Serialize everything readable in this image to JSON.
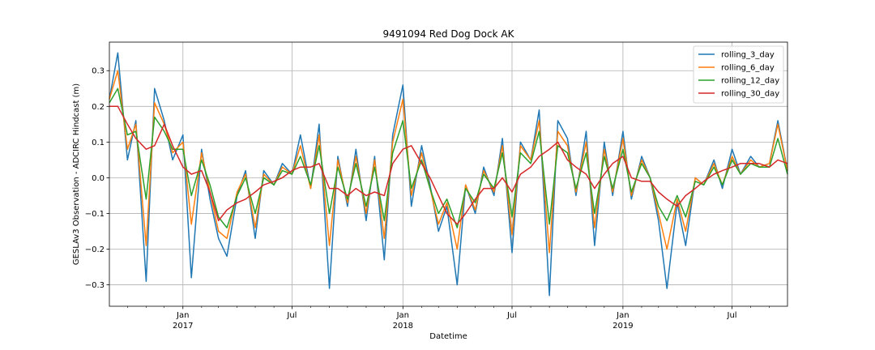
{
  "chart_data": {
    "type": "line",
    "title": "9491094 Red Dog Dock AK",
    "xlabel": "Datetime",
    "ylabel": "GESLAv3 Observation - ADCIRC Hindcast (m)",
    "x_range": [
      "2016-09-01",
      "2019-10-01"
    ],
    "ylim": [
      -0.36,
      0.38
    ],
    "grid": true,
    "legend_position": "upper right",
    "y_ticks": [
      -0.3,
      -0.2,
      -0.1,
      0.0,
      0.1,
      0.2,
      0.3
    ],
    "y_tick_labels": [
      "−0.3",
      "−0.2",
      "−0.1",
      "0.0",
      "0.1",
      "0.2",
      "0.3"
    ],
    "x_major_ticks": [
      {
        "date": "2017-01-01",
        "month": "Jan",
        "year": "2017"
      },
      {
        "date": "2017-07-01",
        "month": "Jul",
        "year": ""
      },
      {
        "date": "2018-01-01",
        "month": "Jan",
        "year": "2018"
      },
      {
        "date": "2018-07-01",
        "month": "Jul",
        "year": ""
      },
      {
        "date": "2019-01-01",
        "month": "Jan",
        "year": "2019"
      },
      {
        "date": "2019-07-01",
        "month": "Jul",
        "year": ""
      }
    ],
    "x_minor_ticks": [
      "2016-10-01",
      "2016-11-01",
      "2016-12-01",
      "2017-02-01",
      "2017-03-01",
      "2017-04-01",
      "2017-05-01",
      "2017-06-01",
      "2017-08-01",
      "2017-09-01",
      "2017-10-01",
      "2017-11-01",
      "2017-12-01",
      "2018-02-01",
      "2018-03-01",
      "2018-04-01",
      "2018-05-01",
      "2018-06-01",
      "2018-08-01",
      "2018-09-01",
      "2018-10-01",
      "2018-11-01",
      "2018-12-01",
      "2019-02-01",
      "2019-03-01",
      "2019-04-01",
      "2019-05-01",
      "2019-06-01",
      "2019-08-01",
      "2019-09-01"
    ],
    "x": [
      "2016-09-01",
      "2016-09-15",
      "2016-10-01",
      "2016-10-15",
      "2016-11-01",
      "2016-11-15",
      "2016-12-01",
      "2016-12-15",
      "2017-01-01",
      "2017-01-15",
      "2017-02-01",
      "2017-02-15",
      "2017-03-01",
      "2017-03-15",
      "2017-04-01",
      "2017-04-15",
      "2017-05-01",
      "2017-05-15",
      "2017-06-01",
      "2017-06-15",
      "2017-07-01",
      "2017-07-15",
      "2017-08-01",
      "2017-08-15",
      "2017-09-01",
      "2017-09-15",
      "2017-10-01",
      "2017-10-15",
      "2017-11-01",
      "2017-11-15",
      "2017-12-01",
      "2017-12-15",
      "2018-01-01",
      "2018-01-15",
      "2018-02-01",
      "2018-02-15",
      "2018-03-01",
      "2018-03-15",
      "2018-04-01",
      "2018-04-15",
      "2018-05-01",
      "2018-05-15",
      "2018-06-01",
      "2018-06-15",
      "2018-07-01",
      "2018-07-15",
      "2018-08-01",
      "2018-08-15",
      "2018-09-01",
      "2018-09-15",
      "2018-10-01",
      "2018-10-15",
      "2018-11-01",
      "2018-11-15",
      "2018-12-01",
      "2018-12-15",
      "2019-01-01",
      "2019-01-15",
      "2019-02-01",
      "2019-02-15",
      "2019-03-01",
      "2019-03-15",
      "2019-04-01",
      "2019-04-15",
      "2019-05-01",
      "2019-05-15",
      "2019-06-01",
      "2019-06-15",
      "2019-07-01",
      "2019-07-15",
      "2019-08-01",
      "2019-08-15",
      "2019-09-01",
      "2019-09-15",
      "2019-10-01"
    ],
    "series": [
      {
        "name": "rolling_3_day",
        "color": "#1f77b4",
        "values": [
          0.22,
          0.35,
          0.05,
          0.16,
          -0.29,
          0.25,
          0.16,
          0.05,
          0.12,
          -0.28,
          0.08,
          -0.06,
          -0.17,
          -0.22,
          -0.05,
          0.02,
          -0.17,
          0.02,
          -0.02,
          0.04,
          0.01,
          0.12,
          -0.03,
          0.15,
          -0.31,
          0.06,
          -0.08,
          0.08,
          -0.12,
          0.06,
          -0.23,
          0.12,
          0.26,
          -0.08,
          0.09,
          -0.02,
          -0.15,
          -0.08,
          -0.3,
          -0.02,
          -0.1,
          0.03,
          -0.05,
          0.11,
          -0.21,
          0.1,
          0.05,
          0.19,
          -0.33,
          0.16,
          0.11,
          -0.05,
          0.13,
          -0.19,
          0.1,
          -0.05,
          0.13,
          -0.06,
          0.06,
          0.0,
          -0.12,
          -0.31,
          -0.07,
          -0.19,
          0.0,
          -0.02,
          0.05,
          -0.03,
          0.08,
          0.01,
          0.06,
          0.03,
          0.04,
          0.16,
          0.02
        ]
      },
      {
        "name": "rolling_6_day",
        "color": "#ff7f0e",
        "values": [
          0.22,
          0.3,
          0.08,
          0.15,
          -0.19,
          0.21,
          0.15,
          0.07,
          0.1,
          -0.13,
          0.07,
          -0.04,
          -0.15,
          -0.17,
          -0.04,
          0.01,
          -0.14,
          0.01,
          -0.02,
          0.03,
          0.01,
          0.09,
          -0.03,
          0.12,
          -0.19,
          0.05,
          -0.07,
          0.06,
          -0.1,
          0.05,
          -0.17,
          0.1,
          0.22,
          -0.05,
          0.07,
          -0.03,
          -0.13,
          -0.07,
          -0.2,
          -0.02,
          -0.09,
          0.02,
          -0.04,
          0.09,
          -0.16,
          0.09,
          0.05,
          0.16,
          -0.21,
          0.13,
          0.09,
          -0.04,
          0.1,
          -0.14,
          0.08,
          -0.04,
          0.11,
          -0.05,
          0.05,
          0.0,
          -0.1,
          -0.2,
          -0.06,
          -0.15,
          0.0,
          -0.02,
          0.04,
          -0.02,
          0.06,
          0.01,
          0.05,
          0.03,
          0.04,
          0.15,
          0.02
        ]
      },
      {
        "name": "rolling_12_day",
        "color": "#2ca02c",
        "values": [
          0.21,
          0.25,
          0.12,
          0.13,
          -0.06,
          0.17,
          0.13,
          0.08,
          0.08,
          -0.05,
          0.05,
          -0.02,
          -0.11,
          -0.14,
          -0.05,
          0.0,
          -0.1,
          0.0,
          -0.02,
          0.02,
          0.01,
          0.06,
          -0.02,
          0.09,
          -0.1,
          0.03,
          -0.06,
          0.04,
          -0.08,
          0.03,
          -0.12,
          0.07,
          0.16,
          -0.03,
          0.05,
          -0.03,
          -0.1,
          -0.06,
          -0.14,
          -0.03,
          -0.07,
          0.01,
          -0.03,
          0.07,
          -0.11,
          0.07,
          0.04,
          0.13,
          -0.13,
          0.09,
          0.07,
          -0.03,
          0.07,
          -0.1,
          0.06,
          -0.03,
          0.08,
          -0.04,
          0.04,
          0.0,
          -0.08,
          -0.12,
          -0.05,
          -0.11,
          -0.01,
          -0.02,
          0.03,
          -0.02,
          0.05,
          0.01,
          0.04,
          0.03,
          0.03,
          0.11,
          0.01
        ]
      },
      {
        "name": "rolling_30_day",
        "color": "#d62728",
        "values": [
          0.2,
          0.2,
          0.15,
          0.11,
          0.08,
          0.09,
          0.15,
          0.09,
          0.03,
          0.01,
          0.02,
          -0.04,
          -0.12,
          -0.09,
          -0.07,
          -0.06,
          -0.04,
          -0.02,
          -0.01,
          0.0,
          0.02,
          0.03,
          0.03,
          0.04,
          -0.03,
          -0.03,
          -0.05,
          -0.03,
          -0.05,
          -0.04,
          -0.05,
          0.04,
          0.08,
          0.09,
          0.04,
          0.0,
          -0.05,
          -0.1,
          -0.13,
          -0.1,
          -0.06,
          -0.03,
          -0.03,
          0.0,
          -0.04,
          0.01,
          0.03,
          0.06,
          0.08,
          0.1,
          0.05,
          0.03,
          0.01,
          -0.03,
          0.01,
          0.04,
          0.06,
          0.0,
          -0.01,
          -0.01,
          -0.04,
          -0.06,
          -0.08,
          -0.05,
          -0.03,
          -0.01,
          0.01,
          0.02,
          0.03,
          0.04,
          0.04,
          0.04,
          0.03,
          0.05,
          0.04
        ]
      }
    ]
  }
}
